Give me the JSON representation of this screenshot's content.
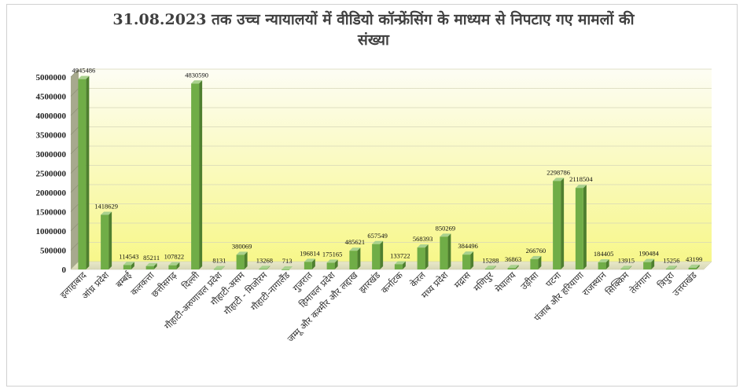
{
  "chart_data": {
    "type": "bar",
    "title_line1": "31.08.2023 तक उच्च न्यायालयों में वीडियो कॉन्फ्रेंसिंग के माध्यम से निपटाए गए मामलों की",
    "title_line2": "संख्या",
    "categories": [
      "इलाहाबाद",
      "आंध्र प्रदेश",
      "बम्बई",
      "कलकत्ता",
      "छत्तीसगढ़",
      "दिल्ली",
      "गौहाटी-अरुणाचल प्रदेश",
      "गौहाटी-असम",
      "गौहाटी - मिजोरम",
      "गौहाटी-नागालैंड",
      "गुजरात",
      "हिमाचल प्रदेश",
      "जम्मू और कश्मीर और लद्दाख",
      "झारखंड",
      "कर्नाटक",
      "केरल",
      "मध्य प्रदेश",
      "मद्रास",
      "मणिपुर",
      "मेघालय",
      "उड़ीसा",
      "पटना",
      "पंजाब और हरियाणा",
      "राजस्थान",
      "सिक्किम",
      "तेलंगाना",
      "त्रिपुरा",
      "उत्तराखंड"
    ],
    "values": [
      4945486,
      1418629,
      114543,
      85211,
      107822,
      4830590,
      8131,
      380069,
      13268,
      713,
      196814,
      175165,
      485621,
      657549,
      133722,
      568393,
      850269,
      384496,
      15288,
      36863,
      266760,
      2298786,
      2118504,
      184405,
      13915,
      190484,
      15256,
      43199
    ],
    "data_labels": [
      "4945486",
      "1418629",
      "114543",
      "85211",
      "107822",
      "4830590",
      "8131",
      "380069",
      "13268",
      "713",
      "196814",
      "175165",
      "485621",
      "657549",
      "133722",
      "568393",
      "850269",
      "384496",
      "15288",
      "36863",
      "266760",
      "2298786",
      "2118504",
      "184405",
      "13915",
      "190484",
      "15256",
      "43199"
    ],
    "y_ticks": [
      "0",
      "500000",
      "1000000",
      "1500000",
      "2000000",
      "2500000",
      "3000000",
      "3500000",
      "4000000",
      "4500000",
      "5000000"
    ],
    "ylim": [
      0,
      5000000
    ],
    "grid": true,
    "legend": "none",
    "colors": {
      "bar_front": "#70ad47",
      "bar_side": "#4e7f2f",
      "bar_top": "#a9d18e",
      "wall_top": "#fdfdf4",
      "wall_bottom": "#f7f78a",
      "side_wall": "#a7a98e"
    }
  }
}
